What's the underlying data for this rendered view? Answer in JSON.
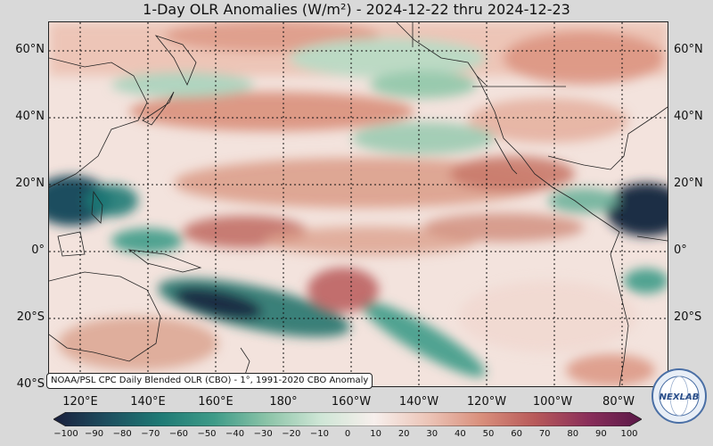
{
  "title": "1-Day OLR Anomalies (W/m²) - 2024-12-22 thru 2024-12-23",
  "credit": "NOAA/PSL CPC Daily Blended OLR (CBO) - 1°, 1991-2020 CBO Anomaly",
  "logo_text": "NEXLAB",
  "lat_labels": [
    "60°N",
    "40°N",
    "20°N",
    "0°",
    "20°S",
    "40°S"
  ],
  "lon_labels": [
    "120°E",
    "140°E",
    "160°E",
    "180°",
    "160°W",
    "140°W",
    "120°W",
    "100°W",
    "80°W"
  ],
  "colorbar": {
    "ticks": [
      "−100",
      "−90",
      "−80",
      "−70",
      "−60",
      "−50",
      "−40",
      "−30",
      "−20",
      "−10",
      "0",
      "10",
      "20",
      "30",
      "40",
      "50",
      "60",
      "70",
      "80",
      "90",
      "100"
    ],
    "range": [
      -100,
      100
    ],
    "colors": [
      "#1a1f3d",
      "#1d4e5f",
      "#1f7a75",
      "#3e9b88",
      "#8cc4a8",
      "#cfe6d6",
      "#f7efec",
      "#ecc5b8",
      "#d98f7c",
      "#b85a5a",
      "#8a2e5a",
      "#5a1848"
    ]
  },
  "colors": {
    "strong_negative": "#1a3a55",
    "negative": "#3f9a8a",
    "weak_negative": "#cfe6d6",
    "neutral": "#f7efec",
    "positive": "#dc9a86",
    "strong_positive": "#b55e5e"
  }
}
